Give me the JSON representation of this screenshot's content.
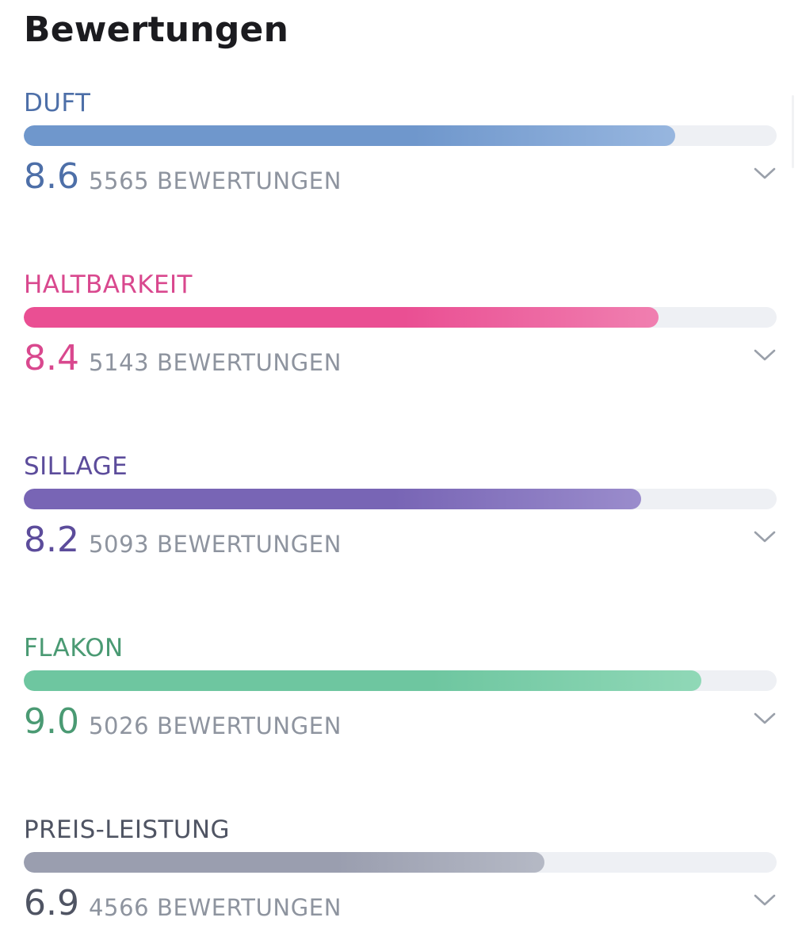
{
  "header": {
    "title": "Bewertungen"
  },
  "ratings": [
    {
      "label": "DUFT",
      "score": "8.6",
      "count": "5565 BEWERTUNGEN",
      "fraction": 0.865,
      "color": "#4d6fa8",
      "bar_from": "#6f97cc",
      "bar_to": "#97b6df"
    },
    {
      "label": "HALTBARKEIT",
      "score": "8.4",
      "count": "5143 BEWERTUNGEN",
      "fraction": 0.843,
      "color": "#d9488e",
      "bar_from": "#ea4f93",
      "bar_to": "#f07fb0"
    },
    {
      "label": "SILLAGE",
      "score": "8.2",
      "count": "5093 BEWERTUNGEN",
      "fraction": 0.82,
      "color": "#5c4c9b",
      "bar_from": "#7865b5",
      "bar_to": "#9a8ccc"
    },
    {
      "label": "FLAKON",
      "score": "9.0",
      "count": "5026 BEWERTUNGEN",
      "fraction": 0.9,
      "color": "#4a9a73",
      "bar_from": "#6ec6a0",
      "bar_to": "#90d8b7"
    },
    {
      "label": "PREIS-LEISTUNG",
      "score": "6.9",
      "count": "4566 BEWERTUNGEN",
      "fraction": 0.692,
      "color": "#4f5463",
      "bar_from": "#9a9eaf",
      "bar_to": "#b5b9c5"
    }
  ],
  "icons": {
    "expand": "chevron-down-icon"
  }
}
